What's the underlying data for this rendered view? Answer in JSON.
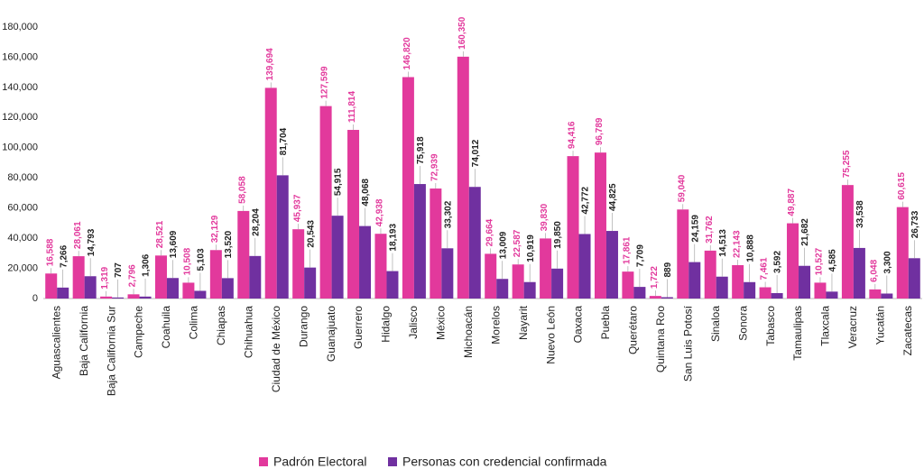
{
  "chart_data": {
    "type": "bar",
    "categories": [
      "Aguascalientes",
      "Baja California",
      "Baja California Sur",
      "Campeche",
      "Coahuila",
      "Colima",
      "Chiapas",
      "Chihuahua",
      "Ciudad de México",
      "Durango",
      "Guanajuato",
      "Guerrero",
      "Hidalgo",
      "Jalisco",
      "México",
      "Michoacán",
      "Morelos",
      "Nayarit",
      "Nuevo León",
      "Oaxaca",
      "Puebla",
      "Querétaro",
      "Quintana Roo",
      "San Luis Potosí",
      "Sinaloa",
      "Sonora",
      "Tabasco",
      "Tamaulipas",
      "Tlaxcala",
      "Veracruz",
      "Yucatán",
      "Zacatecas"
    ],
    "series": [
      {
        "name": "Padrón Electoral",
        "color": "#e2399c",
        "values": [
          16588,
          28061,
          1319,
          2796,
          28521,
          10508,
          32129,
          58058,
          139694,
          45937,
          127599,
          111814,
          42938,
          146820,
          72939,
          160350,
          29664,
          22587,
          39830,
          94416,
          96789,
          17861,
          1722,
          59040,
          31762,
          22143,
          7461,
          49887,
          10527,
          75255,
          6048,
          60615
        ],
        "value_labels": [
          "16,588",
          "28,061",
          "1,319",
          "2,796",
          "28,521",
          "10,508",
          "32,129",
          "58,058",
          "139,694",
          "45,937",
          "127,599",
          "111,814",
          "42,938",
          "146,820",
          "72,939",
          "160,350",
          "29,664",
          "22,587",
          "39,830",
          "94,416",
          "96,789",
          "17,861",
          "1,722",
          "59,040",
          "31,762",
          "22,143",
          "7,461",
          "49,887",
          "10,527",
          "75,255",
          "6,048",
          "60,615"
        ]
      },
      {
        "name": "Personas con credencial confirmada",
        "color": "#7030a0",
        "values": [
          7266,
          14793,
          707,
          1306,
          13609,
          5103,
          13520,
          28204,
          81704,
          20543,
          54915,
          48068,
          18193,
          75918,
          33302,
          74012,
          13009,
          10919,
          19850,
          42772,
          44825,
          7709,
          889,
          24159,
          14513,
          10888,
          3592,
          21682,
          4585,
          33538,
          3300,
          26733
        ],
        "value_labels": [
          "7,266",
          "14,793",
          "707",
          "1,306",
          "13,609",
          "5,103",
          "13,520",
          "28,204",
          "81,704",
          "20,543",
          "54,915",
          "48,068",
          "18,193",
          "75,918",
          "33,302",
          "74,012",
          "13,009",
          "10,919",
          "19,850",
          "42,772",
          "44,825",
          "7,709",
          "889",
          "24,159",
          "14,513",
          "10,888",
          "3,592",
          "21,682",
          "4,585",
          "33,538",
          "3,300",
          "26,733"
        ]
      }
    ],
    "ylim": [
      0,
      180000
    ],
    "yticks": [
      0,
      {
        "value": 20000,
        "label": "20,000"
      },
      {
        "value": 40000,
        "label": "40,000"
      },
      {
        "value": 60000,
        "label": "60,000"
      },
      {
        "value": 80000,
        "label": "80,000"
      },
      {
        "value": 100000,
        "label": "100,000"
      },
      {
        "value": 120000,
        "label": "120,000"
      },
      {
        "value": 140000,
        "label": "140,000"
      },
      {
        "value": 160000,
        "label": "160,000"
      },
      {
        "value": 180000,
        "label": "180,000"
      }
    ],
    "grid": false
  }
}
